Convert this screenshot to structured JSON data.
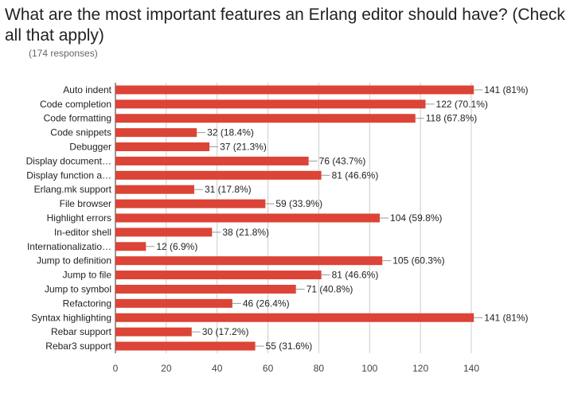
{
  "title": "What are the most important features an Erlang editor should have? (Check all that apply)",
  "subtitle": "(174 responses)",
  "chart_data": {
    "type": "bar",
    "orientation": "horizontal",
    "categories": [
      "Auto indent",
      "Code completion",
      "Code formatting",
      "Code snippets",
      "Debugger",
      "Display document…",
      "Display function a…",
      "Erlang.mk support",
      "File browser",
      "Highlight errors",
      "In-editor shell",
      "Internationalizatio…",
      "Jump to definition",
      "Jump to file",
      "Jump to symbol",
      "Refactoring",
      "Syntax highlighting",
      "Rebar support",
      "Rebar3 support"
    ],
    "values": [
      141,
      122,
      118,
      32,
      37,
      76,
      81,
      31,
      59,
      104,
      38,
      12,
      105,
      81,
      71,
      46,
      141,
      30,
      55
    ],
    "data_labels": [
      "141 (81%)",
      "122 (70.1%)",
      "118 (67.8%)",
      "32 (18.4%)",
      "37 (21.3%)",
      "76 (43.7%)",
      "81 (46.6%)",
      "31 (17.8%)",
      "59 (33.9%)",
      "104 (59.8%)",
      "38 (21.8%)",
      "12 (6.9%)",
      "105 (60.3%)",
      "81 (46.6%)",
      "71 (40.8%)",
      "46 (26.4%)",
      "141 (81%)",
      "30 (17.2%)",
      "55 (31.6%)"
    ],
    "xlim": [
      0,
      140
    ],
    "xticks": [
      0,
      20,
      40,
      60,
      80,
      100,
      120,
      140
    ],
    "bar_color": "#db4437",
    "grid": true
  }
}
